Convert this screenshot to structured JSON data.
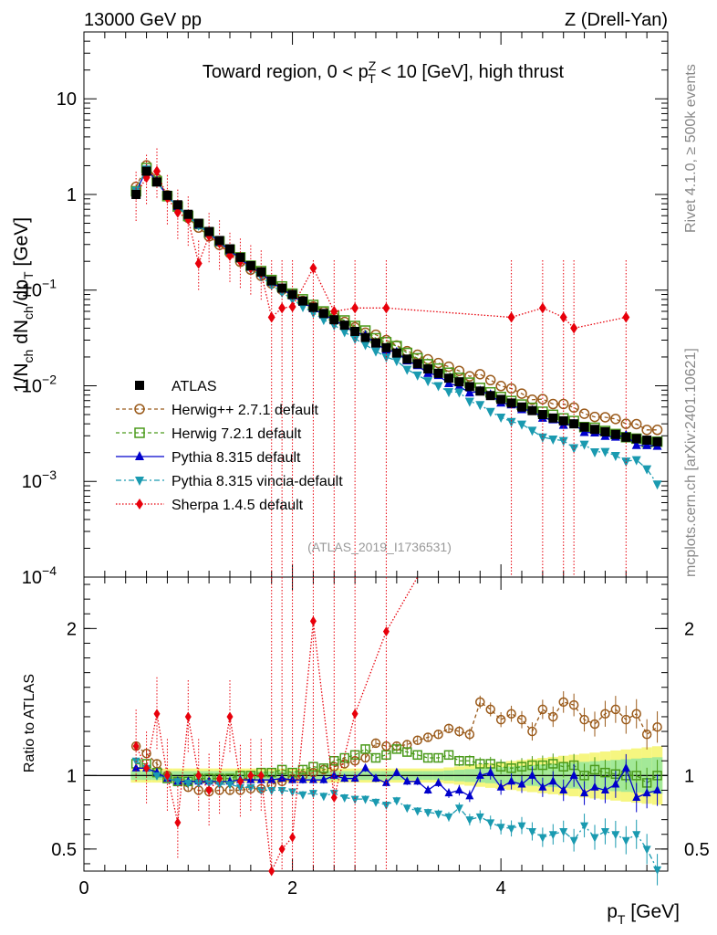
{
  "header": {
    "energy_label": "13000 GeV pp",
    "process_label": "Z (Drell-Yan)"
  },
  "side": {
    "rivet": "Rivet 4.1.0, ≥ 500k events",
    "mcplots": "mcplots.cern.ch [arXiv:2401.10621]"
  },
  "chart_data": [
    {
      "type": "scatter",
      "panel": "main",
      "log_y": true,
      "title_parts": [
        "Toward region, 0 < p",
        "Z",
        "T",
        " < 10 [GeV], high thrust"
      ],
      "ylabel_parts": [
        "1/N",
        "ch",
        " dN",
        "ch",
        "/dp",
        "T",
        " [GeV]"
      ],
      "xlim": [
        0,
        5.6
      ],
      "ylim": [
        0.0001,
        50
      ],
      "y_ticks": [
        {
          "value": 10,
          "label": "10"
        },
        {
          "value": 1,
          "label": "1"
        },
        {
          "value": 0.1,
          "base": "10",
          "exp": "−1"
        },
        {
          "value": 0.01,
          "base": "10",
          "exp": "−2"
        },
        {
          "value": 0.001,
          "base": "10",
          "exp": "−3"
        },
        {
          "value": 0.0001,
          "base": "10",
          "exp": "−4"
        }
      ],
      "watermark": "(ATLAS_2019_I1736531)",
      "legend_position": "lower-left",
      "series": [
        {
          "name": "ATLAS",
          "color": "#000000",
          "marker": "square-filled"
        },
        {
          "name": "Herwig++ 2.7.1 default",
          "color": "#9a5a1a",
          "marker": "circle-open"
        },
        {
          "name": "Herwig 7.2.1 default",
          "color": "#4a9a1a",
          "marker": "square-open"
        },
        {
          "name": "Pythia 8.315 default",
          "color": "#0000cc",
          "marker": "triangle-up"
        },
        {
          "name": "Pythia 8.315 vincia-default",
          "color": "#1a9ab0",
          "marker": "triangle-down"
        },
        {
          "name": "Sherpa 1.4.5 default",
          "color": "#e8000b",
          "marker": "diamond"
        }
      ],
      "atlas_points": {
        "x": [
          0.5,
          0.6,
          0.7,
          0.8,
          0.9,
          1.0,
          1.1,
          1.2,
          1.3,
          1.4,
          1.5,
          1.6,
          1.7,
          1.8,
          1.9,
          2.0,
          2.1,
          2.2,
          2.3,
          2.4,
          2.5,
          2.6,
          2.7,
          2.8,
          2.9,
          3.0,
          3.1,
          3.2,
          3.3,
          3.4,
          3.5,
          3.6,
          3.7,
          3.8,
          3.9,
          4.0,
          4.1,
          4.2,
          4.3,
          4.4,
          4.5,
          4.6,
          4.7,
          4.8,
          4.9,
          5.0,
          5.1,
          5.2,
          5.3,
          5.4,
          5.5
        ],
        "y": [
          1.0,
          1.75,
          1.35,
          0.98,
          0.78,
          0.62,
          0.5,
          0.41,
          0.33,
          0.27,
          0.22,
          0.18,
          0.155,
          0.125,
          0.105,
          0.09,
          0.077,
          0.066,
          0.057,
          0.049,
          0.043,
          0.037,
          0.032,
          0.028,
          0.025,
          0.022,
          0.019,
          0.017,
          0.015,
          0.0135,
          0.012,
          0.011,
          0.0098,
          0.0088,
          0.0079,
          0.0072,
          0.0066,
          0.006,
          0.0055,
          0.005,
          0.0046,
          0.0043,
          0.004,
          0.0037,
          0.0035,
          0.0033,
          0.0031,
          0.0029,
          0.0028,
          0.0027,
          0.0026
        ]
      },
      "sherpa_points": {
        "x": [
          0.5,
          0.6,
          0.7,
          0.8,
          0.9,
          1.0,
          1.1,
          1.2,
          1.3,
          1.4,
          1.5,
          1.6,
          1.7,
          1.8,
          1.9,
          2.0,
          2.2,
          2.4,
          2.6,
          2.9,
          4.1,
          4.4,
          4.6,
          4.7,
          5.2
        ],
        "y": [
          1.0,
          1.5,
          1.75,
          0.92,
          0.65,
          0.55,
          0.19,
          0.37,
          0.31,
          0.23,
          0.2,
          0.17,
          0.15,
          0.052,
          0.065,
          0.067,
          0.17,
          0.06,
          0.065,
          0.065,
          0.052,
          0.065,
          0.052,
          0.04,
          0.052
        ]
      },
      "ratio_to_atlas": {
        "herwigpp": [
          1.2,
          1.15,
          1.08,
          1.0,
          0.96,
          0.92,
          0.9,
          0.89,
          0.9,
          0.9,
          0.9,
          0.91,
          0.91,
          0.94,
          0.96,
          0.98,
          1.0,
          1.02,
          1.04,
          1.06,
          1.08,
          1.1,
          1.12,
          1.22,
          1.2,
          1.2,
          1.21,
          1.24,
          1.26,
          1.28,
          1.32,
          1.3,
          1.28,
          1.5,
          1.45,
          1.38,
          1.42,
          1.38,
          1.3,
          1.45,
          1.4,
          1.5,
          1.48,
          1.38,
          1.35,
          1.42,
          1.45,
          1.38,
          1.42,
          1.28,
          1.33
        ],
        "herwig7": [
          1.08,
          1.08,
          1.02,
          0.98,
          0.96,
          0.96,
          0.98,
          0.98,
          0.98,
          0.98,
          1.0,
          1.0,
          1.02,
          1.02,
          1.04,
          1.02,
          1.04,
          1.06,
          1.05,
          1.1,
          1.12,
          1.14,
          1.18,
          1.12,
          1.14,
          1.18,
          1.16,
          1.14,
          1.12,
          1.12,
          1.14,
          1.1,
          1.1,
          1.08,
          1.08,
          1.06,
          1.05,
          1.06,
          1.07,
          1.07,
          1.08,
          1.06,
          1.07,
          1.0,
          1.04,
          1.02,
          1.01,
          1.0,
          1.0,
          0.95,
          1.0
        ],
        "pythia": [
          1.05,
          1.05,
          1.02,
          0.98,
          0.96,
          0.96,
          0.96,
          0.96,
          0.96,
          0.96,
          0.97,
          0.97,
          0.97,
          0.97,
          0.98,
          0.97,
          0.97,
          0.97,
          0.97,
          1.0,
          0.98,
          0.98,
          1.05,
          0.98,
          0.95,
          1.02,
          0.96,
          0.96,
          0.9,
          0.95,
          0.88,
          0.9,
          0.86,
          1.0,
          1.02,
          0.92,
          0.96,
          0.94,
          1.0,
          0.92,
          0.96,
          0.9,
          1.0,
          0.88,
          0.92,
          0.9,
          0.94,
          1.05,
          0.85,
          0.88,
          0.9
        ],
        "vincia": [
          1.1,
          1.05,
          1.0,
          0.98,
          0.96,
          0.95,
          0.95,
          0.95,
          0.94,
          0.94,
          0.92,
          0.92,
          0.9,
          0.9,
          0.9,
          0.89,
          0.87,
          0.88,
          0.86,
          0.88,
          0.85,
          0.84,
          0.84,
          0.82,
          0.8,
          0.83,
          0.78,
          0.76,
          0.75,
          0.74,
          0.72,
          0.78,
          0.7,
          0.72,
          0.68,
          0.65,
          0.64,
          0.66,
          0.62,
          0.58,
          0.6,
          0.62,
          0.56,
          0.66,
          0.58,
          0.62,
          0.6,
          0.56,
          0.6,
          0.5,
          0.36
        ]
      }
    },
    {
      "type": "scatter",
      "panel": "ratio",
      "ylabel": "Ratio to ATLAS",
      "xlabel_parts": [
        "p",
        "T",
        " [GeV]"
      ],
      "xlim": [
        0,
        5.6
      ],
      "ylim": [
        0.35,
        2.35
      ],
      "y_ticks": [
        0.5,
        1,
        2
      ],
      "y_tick_labels": [
        "0.5",
        "1",
        "2"
      ],
      "x_ticks": [
        0,
        2,
        4
      ],
      "x_tick_labels": [
        "0",
        "2",
        "4"
      ],
      "sherpa_ratio": [
        1.2,
        1.05,
        1.42,
        1.0,
        0.68,
        1.4,
        1.0,
        0.9,
        0.98,
        1.4,
        0.96,
        1.0,
        1.0,
        0.35,
        0.5,
        0.58,
        2.05,
        0.85,
        1.42,
        1.98
      ]
    }
  ]
}
